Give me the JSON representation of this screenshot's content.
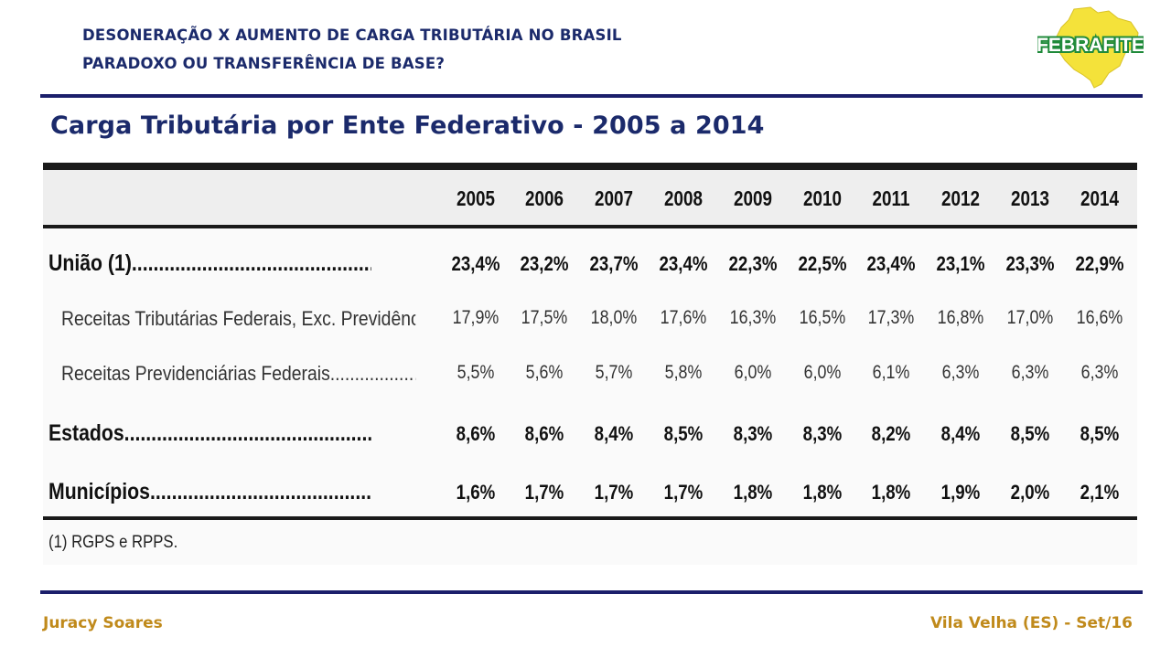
{
  "header": {
    "line1": "DESONERAÇÃO X AUMENTO DE CARGA TRIBUTÁRIA NO BRASIL",
    "line2": "PARADOXO OU TRANSFERÊNCIA DE BASE?"
  },
  "logo": {
    "text": "FEBRAFITE",
    "colors": {
      "map": "#f4e23a",
      "text": "#1f8a3a"
    }
  },
  "title": "Carga Tributária por Ente Federativo - 2005 a 2014",
  "table": {
    "years": [
      "2005",
      "2006",
      "2007",
      "2008",
      "2009",
      "2010",
      "2011",
      "2012",
      "2013",
      "2014"
    ],
    "rows": [
      {
        "label": "União (1)...................................................",
        "style": "main",
        "values": [
          "23,4%",
          "23,2%",
          "23,7%",
          "23,4%",
          "22,3%",
          "22,5%",
          "23,4%",
          "23,1%",
          "23,3%",
          "22,9%"
        ]
      },
      {
        "label": "Receitas Tributárias Federais, Exc. Previdência....",
        "style": "sub",
        "values": [
          "17,9%",
          "17,5%",
          "18,0%",
          "17,6%",
          "16,3%",
          "16,5%",
          "17,3%",
          "16,8%",
          "17,0%",
          "16,6%"
        ]
      },
      {
        "label": "Receitas Previdenciárias Federais............................",
        "style": "sub",
        "values": [
          "5,5%",
          "5,6%",
          "5,7%",
          "5,8%",
          "6,0%",
          "6,0%",
          "6,1%",
          "6,3%",
          "6,3%",
          "6,3%"
        ]
      },
      {
        "label": "Estados............................................................",
        "style": "main",
        "values": [
          "8,6%",
          "8,6%",
          "8,4%",
          "8,5%",
          "8,3%",
          "8,3%",
          "8,2%",
          "8,4%",
          "8,5%",
          "8,5%"
        ]
      },
      {
        "label": "Municípios....................................................",
        "style": "main",
        "values": [
          "1,6%",
          "1,7%",
          "1,7%",
          "1,7%",
          "1,8%",
          "1,8%",
          "1,8%",
          "1,9%",
          "2,0%",
          "2,1%"
        ]
      }
    ],
    "footnote": "(1) RGPS e RPPS."
  },
  "footer": {
    "left": "Juracy Soares",
    "right": "Vila Velha (ES) - Set/16"
  },
  "colors": {
    "navy": "#1b2a6b",
    "rule": "#1b1f6b",
    "footer": "#c08a1b"
  }
}
